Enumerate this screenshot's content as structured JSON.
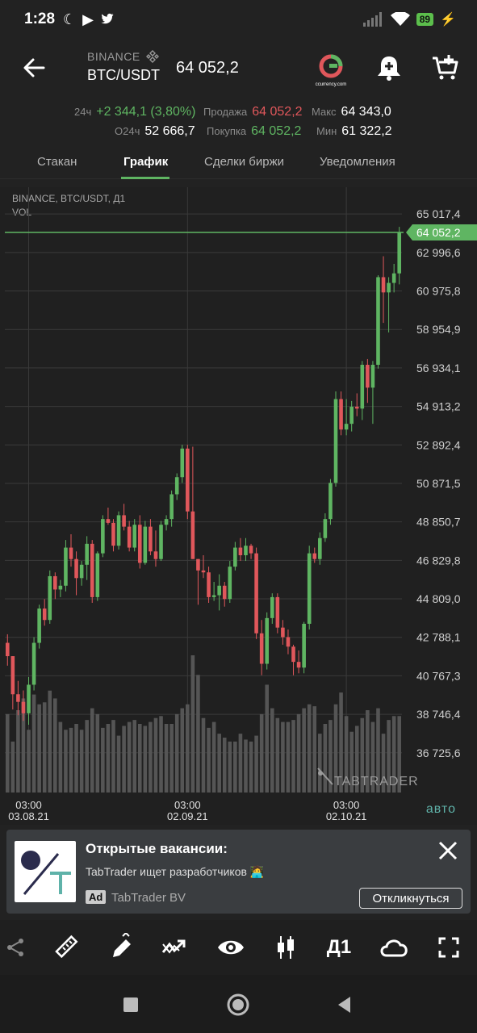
{
  "status": {
    "time": "1:28",
    "battery": "89",
    "left_icons": [
      "moon-icon",
      "play-icon",
      "twitter-icon"
    ]
  },
  "header": {
    "exchange": "BINANCE",
    "pair": "BTC/USDT",
    "price": "64 052,2"
  },
  "stats": {
    "change_label": "24ч",
    "change_value": "+2 344,1 (3,80%)",
    "volume_label": "О24ч",
    "volume_value": "52 666,7",
    "sell_label": "Продажа",
    "sell_value": "64 052,2",
    "buy_label": "Покупка",
    "buy_value": "64 052,2",
    "max_label": "Макс",
    "max_value": "64 343,0",
    "min_label": "Мин",
    "min_value": "61 322,2"
  },
  "tabs": [
    {
      "label": "Стакан"
    },
    {
      "label": "График"
    },
    {
      "label": "Сделки биржи"
    },
    {
      "label": "Уведомления"
    }
  ],
  "chart_meta": {
    "line1": "BINANCE, BTC/USDT, Д1",
    "line2": "VOL",
    "watermark": "TABTRADER",
    "auto_label": "авто"
  },
  "chart_data": {
    "type": "candlestick",
    "title": "BINANCE, BTC/USDT, Д1",
    "current_price": 64052.2,
    "current_price_label": "64 052,2",
    "ylim": [
      35700,
      66000
    ],
    "y_ticks": [
      "65 017,4",
      "62 996,6",
      "60 975,8",
      "58 954,9",
      "56 934,1",
      "54 913,2",
      "52 892,4",
      "50 871,5",
      "48 850,7",
      "46 829,8",
      "44 809,0",
      "42 788,1",
      "40 767,3",
      "38 746,4",
      "36 725,6"
    ],
    "y_tick_values": [
      65017.4,
      62996.6,
      60975.8,
      58954.9,
      56934.1,
      54913.2,
      52892.4,
      50871.5,
      48850.7,
      46829.8,
      44809.0,
      42788.1,
      40767.3,
      38746.4,
      36725.6
    ],
    "x_ticks": [
      {
        "time": "03:00",
        "date": "03.08.21",
        "index": 4
      },
      {
        "time": "03:00",
        "date": "02.09.21",
        "index": 34
      },
      {
        "time": "03:00",
        "date": "02.10.21",
        "index": 64
      }
    ],
    "candles": [
      [
        42500,
        42950,
        41300,
        41800
      ],
      [
        41800,
        41800,
        39000,
        39800
      ],
      [
        39800,
        40500,
        38700,
        39400
      ],
      [
        39400,
        40000,
        38400,
        38800
      ],
      [
        38800,
        40700,
        38200,
        40300
      ],
      [
        40300,
        42800,
        40000,
        42500
      ],
      [
        42500,
        44500,
        42200,
        44300
      ],
      [
        44300,
        44800,
        43400,
        43700
      ],
      [
        43700,
        46300,
        43500,
        46000
      ],
      [
        46000,
        46200,
        44800,
        45300
      ],
      [
        45300,
        45800,
        44900,
        45500
      ],
      [
        45500,
        47900,
        45200,
        47500
      ],
      [
        47500,
        48200,
        46500,
        46900
      ],
      [
        46900,
        47300,
        45000,
        45900
      ],
      [
        45900,
        46800,
        45500,
        46600
      ],
      [
        46600,
        48100,
        45800,
        47700
      ],
      [
        47700,
        47900,
        44600,
        44900
      ],
      [
        44900,
        47300,
        44700,
        47200
      ],
      [
        47200,
        49200,
        47000,
        49000
      ],
      [
        49000,
        49600,
        48700,
        48800
      ],
      [
        48800,
        49000,
        47300,
        47600
      ],
      [
        47600,
        49400,
        47400,
        49200
      ],
      [
        49200,
        49800,
        48400,
        48600
      ],
      [
        48600,
        48900,
        47300,
        47500
      ],
      [
        47500,
        49000,
        47300,
        48700
      ],
      [
        48700,
        49200,
        46400,
        46700
      ],
      [
        46700,
        48900,
        46600,
        48600
      ],
      [
        48600,
        49000,
        47100,
        47300
      ],
      [
        47300,
        48400,
        46500,
        46900
      ],
      [
        46900,
        48900,
        46800,
        48700
      ],
      [
        48700,
        49200,
        48400,
        49000
      ],
      [
        49000,
        50500,
        48600,
        50300
      ],
      [
        50300,
        51400,
        50000,
        51200
      ],
      [
        51200,
        52900,
        50900,
        52700
      ],
      [
        52700,
        52900,
        49000,
        49400
      ],
      [
        49400,
        52800,
        46900,
        46900
      ],
      [
        46900,
        46900,
        44500,
        46300
      ],
      [
        46300,
        47100,
        45900,
        46200
      ],
      [
        46200,
        46500,
        44600,
        44900
      ],
      [
        44900,
        45700,
        44700,
        45000
      ],
      [
        45000,
        46100,
        44200,
        45500
      ],
      [
        45500,
        45700,
        44400,
        44800
      ],
      [
        44800,
        46800,
        44600,
        46500
      ],
      [
        46500,
        47800,
        46300,
        47500
      ],
      [
        47500,
        48000,
        46800,
        47100
      ],
      [
        47100,
        48000,
        46800,
        47600
      ],
      [
        47600,
        47700,
        46900,
        47200
      ],
      [
        47200,
        47500,
        42700,
        43000
      ],
      [
        43000,
        43700,
        40800,
        41400
      ],
      [
        41400,
        44100,
        41100,
        43800
      ],
      [
        43800,
        45100,
        43500,
        44900
      ],
      [
        44900,
        45100,
        43000,
        43300
      ],
      [
        43300,
        43700,
        42400,
        42800
      ],
      [
        42800,
        43200,
        41900,
        42300
      ],
      [
        42300,
        42400,
        40800,
        41500
      ],
      [
        41500,
        42100,
        40900,
        41200
      ],
      [
        41200,
        43600,
        40900,
        43500
      ],
      [
        43500,
        47600,
        43200,
        47200
      ],
      [
        47200,
        47500,
        46700,
        46900
      ],
      [
        46900,
        48300,
        46600,
        48000
      ],
      [
        48000,
        49300,
        47800,
        49000
      ],
      [
        49000,
        51100,
        48700,
        50900
      ],
      [
        50900,
        55700,
        50700,
        55300
      ],
      [
        55300,
        55700,
        53400,
        53700
      ],
      [
        53700,
        55300,
        53400,
        54000
      ],
      [
        54000,
        55200,
        53600,
        54900
      ],
      [
        54900,
        55600,
        54400,
        54800
      ],
      [
        54800,
        57300,
        54200,
        57100
      ],
      [
        57100,
        57400,
        55100,
        55900
      ],
      [
        55900,
        57300,
        54000,
        57100
      ],
      [
        57100,
        61800,
        56900,
        61700
      ],
      [
        61700,
        62800,
        59300,
        60900
      ],
      [
        60900,
        61700,
        58800,
        61400
      ],
      [
        61400,
        62400,
        60900,
        61900
      ],
      [
        61900,
        64343,
        61322,
        64052.2
      ]
    ],
    "volumes": [
      40,
      26,
      42,
      48,
      32,
      50,
      45,
      46,
      52,
      48,
      36,
      32,
      33,
      35,
      32,
      37,
      43,
      40,
      33,
      35,
      37,
      29,
      34,
      36,
      37,
      35,
      34,
      36,
      38,
      39,
      35,
      35,
      40,
      43,
      45,
      70,
      60,
      38,
      33,
      36,
      30,
      28,
      26,
      26,
      30,
      27,
      26,
      29,
      40,
      55,
      43,
      38,
      36,
      36,
      37,
      40,
      43,
      45,
      44,
      30,
      35,
      37,
      45,
      51,
      39,
      31,
      34,
      38,
      42,
      36,
      43,
      30,
      37,
      39,
      39
    ]
  },
  "ad": {
    "title": "Открытые вакансии:",
    "description": "TabTrader ищет разработчиков 🧑‍💻",
    "badge": "Ad",
    "advertiser": "TabTrader BV",
    "button": "Откликнуться"
  },
  "toolbar": {
    "timeframe": "Д1"
  },
  "colors": {
    "up": "#5fb562",
    "down": "#e0575b",
    "grid": "#3a3a3a",
    "background": "#202020"
  }
}
